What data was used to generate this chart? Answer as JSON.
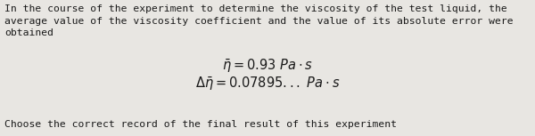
{
  "background_color": "#e8e6e2",
  "text_color": "#1a1a1a",
  "paragraph_text": "In the course of the experiment to determine the viscosity of the test liquid, the\naverage value of the viscosity coefficient and the value of its absolute error were\nobtained",
  "formula1": "$\\bar{\\eta} = 0.93\\ Pa\\cdot s$",
  "formula2": "$\\Delta\\bar{\\eta} = 0.07895...\\ Pa\\cdot s$",
  "footer_text": "Choose the correct record of the final result of this experiment",
  "paragraph_fontsize": 8.2,
  "formula_fontsize": 10.5,
  "footer_fontsize": 8.2,
  "figsize": [
    6.0,
    1.53
  ],
  "dpi": 100
}
